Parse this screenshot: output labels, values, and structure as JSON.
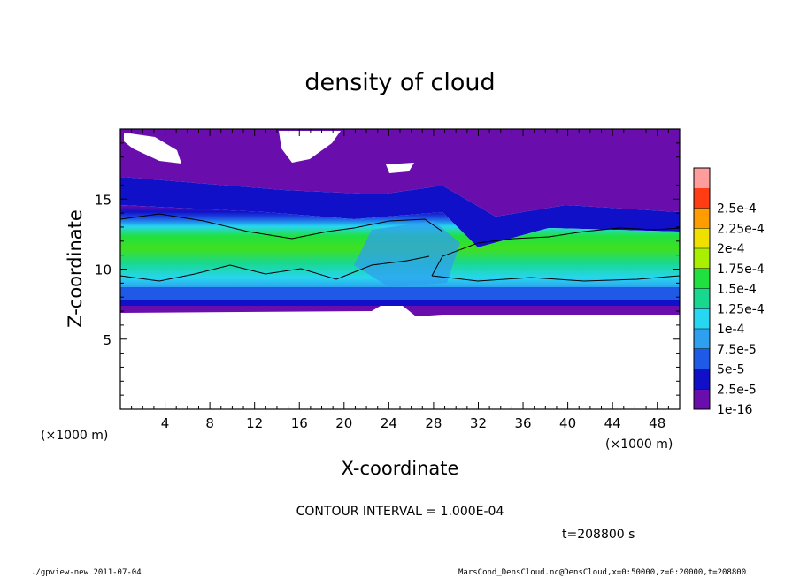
{
  "chart_data": {
    "type": "heatmap",
    "title": "density of cloud",
    "xlabel": "X-coordinate",
    "ylabel": "Z-coordinate",
    "x_unit_left": "(×1000 m)",
    "x_unit_right": "(×1000 m)",
    "xlim": [
      0,
      50
    ],
    "ylim": [
      0,
      20
    ],
    "xticks": [
      4,
      8,
      12,
      16,
      20,
      24,
      28,
      32,
      36,
      40,
      44,
      48
    ],
    "yticks": [
      5,
      10,
      15
    ],
    "colorbar": {
      "levels": [
        "1e-16",
        "2.5e-5",
        "5e-5",
        "7.5e-5",
        "1e-4",
        "1.25e-4",
        "1.5e-4",
        "1.75e-4",
        "2e-4",
        "2.25e-4",
        "2.5e-4"
      ],
      "colors": [
        "#6a0dad",
        "#1010c8",
        "#1e5ae6",
        "#2f9ff0",
        "#27d6f0",
        "#18d890",
        "#20e040",
        "#a8f000",
        "#f0e000",
        "#ff9c00",
        "#ff3c14",
        "#ff9c9c"
      ]
    },
    "contour_interval_text": "CONTOUR INTERVAL = 1.000E-04",
    "time_text": "t=208800 s",
    "grid": false
  },
  "footer": {
    "left": "./gpview-new  2011-07-04",
    "right": "MarsCond_DensCloud.nc@DensCloud,x=0:50000,z=0:20000,t=208800"
  }
}
